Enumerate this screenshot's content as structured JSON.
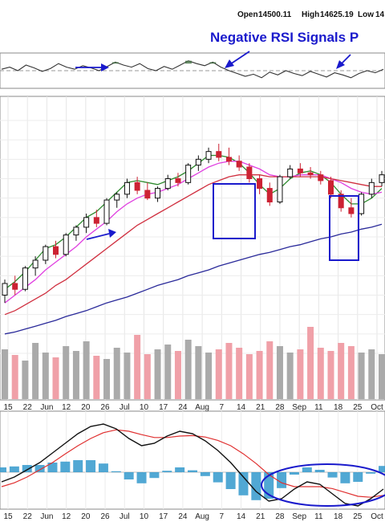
{
  "header": {
    "open_label": "Open",
    "open_value": "14500.11",
    "high_label": "High",
    "high_value": "14625.19",
    "low_label": "Low",
    "low_value": "14"
  },
  "annotation": {
    "text": "Negative RSI Signals P"
  },
  "colors": {
    "up_candle": "#111111",
    "down_candle": "#cc2233",
    "short_ma": "#2e8b2e",
    "mid_ma": "#e040e0",
    "long_ma": "#d03040",
    "very_long_ma": "#2a2a9a",
    "volume_up": "#aaaaaa",
    "volume_down": "#f0a0a8",
    "macd_line": "#111111",
    "signal_line": "#e03030",
    "histogram": "#3399cc",
    "rsi_fill": "#3a6a3a",
    "annotation": "#1a1acc"
  },
  "chart_data": [
    {
      "type": "line",
      "panel": "RSI",
      "title": "",
      "grid": true,
      "series": [
        {
          "values": [
            52,
            55,
            50,
            58,
            54,
            49,
            53,
            60,
            55,
            52,
            57,
            54,
            50,
            56,
            62,
            58,
            55,
            60,
            53,
            50,
            56,
            52,
            58,
            64,
            60,
            57,
            62,
            55,
            50,
            46,
            42,
            45,
            40,
            48,
            44,
            50,
            46,
            43,
            49,
            45,
            41,
            47,
            44,
            40,
            46,
            50,
            47,
            52
          ]
        }
      ]
    },
    {
      "type": "line",
      "panel": "price",
      "title": "",
      "grid": true,
      "x_tick_labels": [
        "15",
        "22",
        "Jun",
        "12",
        "20",
        "26",
        "Jul",
        "10",
        "17",
        "24",
        "Aug",
        "7",
        "14",
        "21",
        "28",
        "Sep",
        "11",
        "18",
        "25",
        "Oct"
      ],
      "candles": [
        [
          13800,
          13880,
          13760,
          13860
        ],
        [
          13860,
          13900,
          13800,
          13830
        ],
        [
          13830,
          13950,
          13820,
          13940
        ],
        [
          13940,
          14000,
          13900,
          13980
        ],
        [
          13980,
          14060,
          13960,
          14050
        ],
        [
          14050,
          14080,
          13990,
          14010
        ],
        [
          14010,
          14120,
          14000,
          14110
        ],
        [
          14110,
          14160,
          14080,
          14150
        ],
        [
          14150,
          14220,
          14120,
          14200
        ],
        [
          14200,
          14240,
          14150,
          14170
        ],
        [
          14170,
          14300,
          14160,
          14290
        ],
        [
          14290,
          14330,
          14250,
          14320
        ],
        [
          14320,
          14400,
          14300,
          14380
        ],
        [
          14380,
          14410,
          14320,
          14340
        ],
        [
          14340,
          14380,
          14290,
          14300
        ],
        [
          14300,
          14360,
          14280,
          14350
        ],
        [
          14350,
          14420,
          14340,
          14400
        ],
        [
          14400,
          14430,
          14360,
          14380
        ],
        [
          14380,
          14480,
          14370,
          14470
        ],
        [
          14470,
          14520,
          14440,
          14500
        ],
        [
          14500,
          14560,
          14480,
          14540
        ],
        [
          14540,
          14580,
          14490,
          14510
        ],
        [
          14510,
          14560,
          14470,
          14490
        ],
        [
          14490,
          14520,
          14440,
          14460
        ],
        [
          14460,
          14480,
          14380,
          14400
        ],
        [
          14400,
          14420,
          14320,
          14350
        ],
        [
          14350,
          14380,
          14260,
          14280
        ],
        [
          14280,
          14420,
          14270,
          14410
        ],
        [
          14410,
          14470,
          14400,
          14450
        ],
        [
          14450,
          14480,
          14410,
          14430
        ],
        [
          14430,
          14460,
          14400,
          14420
        ],
        [
          14420,
          14440,
          14370,
          14390
        ],
        [
          14390,
          14410,
          14300,
          14320
        ],
        [
          14320,
          14340,
          14230,
          14250
        ],
        [
          14250,
          14300,
          14200,
          14220
        ],
        [
          14220,
          14330,
          14210,
          14320
        ],
        [
          14320,
          14400,
          14300,
          14380
        ],
        [
          14380,
          14440,
          14360,
          14420
        ]
      ],
      "series": [
        {
          "values": [
            13830,
            13870,
            13920,
            13980,
            14040,
            14060,
            14100,
            14150,
            14200,
            14230,
            14280,
            14330,
            14380,
            14390,
            14380,
            14370,
            14390,
            14410,
            14440,
            14480,
            14520,
            14520,
            14510,
            14480,
            14430,
            14370,
            14320,
            14350,
            14400,
            14430,
            14440,
            14420,
            14380,
            14320,
            14270,
            14270,
            14300,
            14350
          ]
        },
        {
          "values": [
            13760,
            13800,
            13840,
            13880,
            13930,
            13970,
            14010,
            14050,
            14100,
            14140,
            14180,
            14230,
            14270,
            14300,
            14320,
            14330,
            14350,
            14370,
            14400,
            14430,
            14460,
            14480,
            14490,
            14490,
            14470,
            14450,
            14420,
            14410,
            14410,
            14420,
            14420,
            14420,
            14400,
            14380,
            14350,
            14330,
            14320,
            14330
          ]
        },
        {
          "values": [
            13700,
            13720,
            13750,
            13780,
            13810,
            13850,
            13880,
            13920,
            13960,
            14000,
            14040,
            14080,
            14120,
            14160,
            14190,
            14220,
            14250,
            14280,
            14310,
            14340,
            14370,
            14390,
            14410,
            14420,
            14420,
            14420,
            14410,
            14410,
            14410,
            14410,
            14410,
            14410,
            14400,
            14390,
            14380,
            14370,
            14360,
            14360
          ]
        },
        {
          "values": [
            13600,
            13610,
            13625,
            13640,
            13655,
            13670,
            13690,
            13705,
            13720,
            13740,
            13760,
            13775,
            13790,
            13810,
            13830,
            13850,
            13865,
            13880,
            13900,
            13915,
            13930,
            13950,
            13965,
            13980,
            13995,
            14010,
            14020,
            14035,
            14050,
            14060,
            14075,
            14090,
            14100,
            14115,
            14125,
            14140,
            14150,
            14165
          ]
        }
      ],
      "volume": [
        62,
        55,
        48,
        70,
        58,
        52,
        66,
        60,
        72,
        54,
        50,
        64,
        58,
        80,
        56,
        62,
        68,
        60,
        74,
        66,
        58,
        62,
        70,
        64,
        56,
        60,
        72,
        66,
        58,
        62,
        90,
        64,
        60,
        70,
        66,
        58,
        62,
        56
      ]
    },
    {
      "type": "line",
      "panel": "MACD",
      "title": "",
      "grid": true,
      "series": [
        {
          "values": [
            -20,
            -10,
            5,
            20,
            40,
            60,
            80,
            95,
            100,
            90,
            70,
            55,
            60,
            75,
            85,
            80,
            65,
            45,
            20,
            -10,
            -40,
            -60,
            -55,
            -35,
            -20,
            -25,
            -45,
            -65,
            -70,
            -55,
            -35
          ]
        },
        {
          "values": [
            -30,
            -22,
            -10,
            5,
            20,
            38,
            55,
            70,
            82,
            88,
            85,
            78,
            72,
            72,
            75,
            76,
            73,
            66,
            55,
            38,
            18,
            -5,
            -22,
            -30,
            -30,
            -30,
            -34,
            -42,
            -50,
            -52,
            -48
          ]
        }
      ],
      "histogram": [
        10,
        12,
        15,
        15,
        20,
        22,
        25,
        25,
        18,
        2,
        -15,
        -23,
        -12,
        3,
        10,
        4,
        -8,
        -21,
        -35,
        -48,
        -58,
        -55,
        -33,
        -5,
        10,
        5,
        -11,
        -23,
        -20,
        -3,
        13
      ]
    }
  ]
}
